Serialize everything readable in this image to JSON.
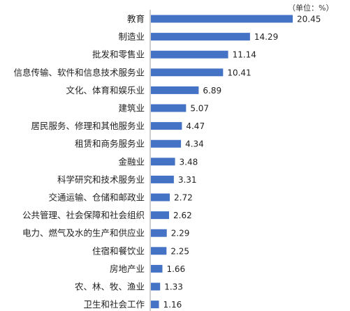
{
  "chart_data": {
    "type": "bar",
    "orientation": "horizontal",
    "unit_label": "（单位：%）",
    "bar_color": "#4472C4",
    "axis_color": "#9e9e9e",
    "categories": [
      "教育",
      "制造业",
      "批发和零售业",
      "信息传输、软件和信息技术服务业",
      "文化、体育和娱乐业",
      "建筑业",
      "居民服务、修理和其他服务业",
      "租赁和商务服务业",
      "金融业",
      "科学研究和技术服务业",
      "交通运输、仓储和邮政业",
      "公共管理、社会保障和社会组织",
      "电力、燃气及水的生产和供应业",
      "住宿和餐饮业",
      "房地产业",
      "农、林、牧、渔业",
      "卫生和社会工作"
    ],
    "values": [
      20.45,
      14.29,
      11.14,
      10.41,
      6.89,
      5.07,
      4.47,
      4.34,
      3.48,
      3.31,
      2.72,
      2.62,
      2.29,
      2.25,
      1.66,
      1.33,
      1.16
    ],
    "data_labels": [
      "20.45",
      "14.29",
      "11.14",
      "10.41",
      "6.89",
      "5.07",
      "4.47",
      "4.34",
      "3.48",
      "3.31",
      "2.72",
      "2.62",
      "2.29",
      "2.25",
      "1.66",
      "1.33",
      "1.16"
    ],
    "xlim": [
      0,
      20.45
    ],
    "grid": false,
    "legend": "none"
  }
}
